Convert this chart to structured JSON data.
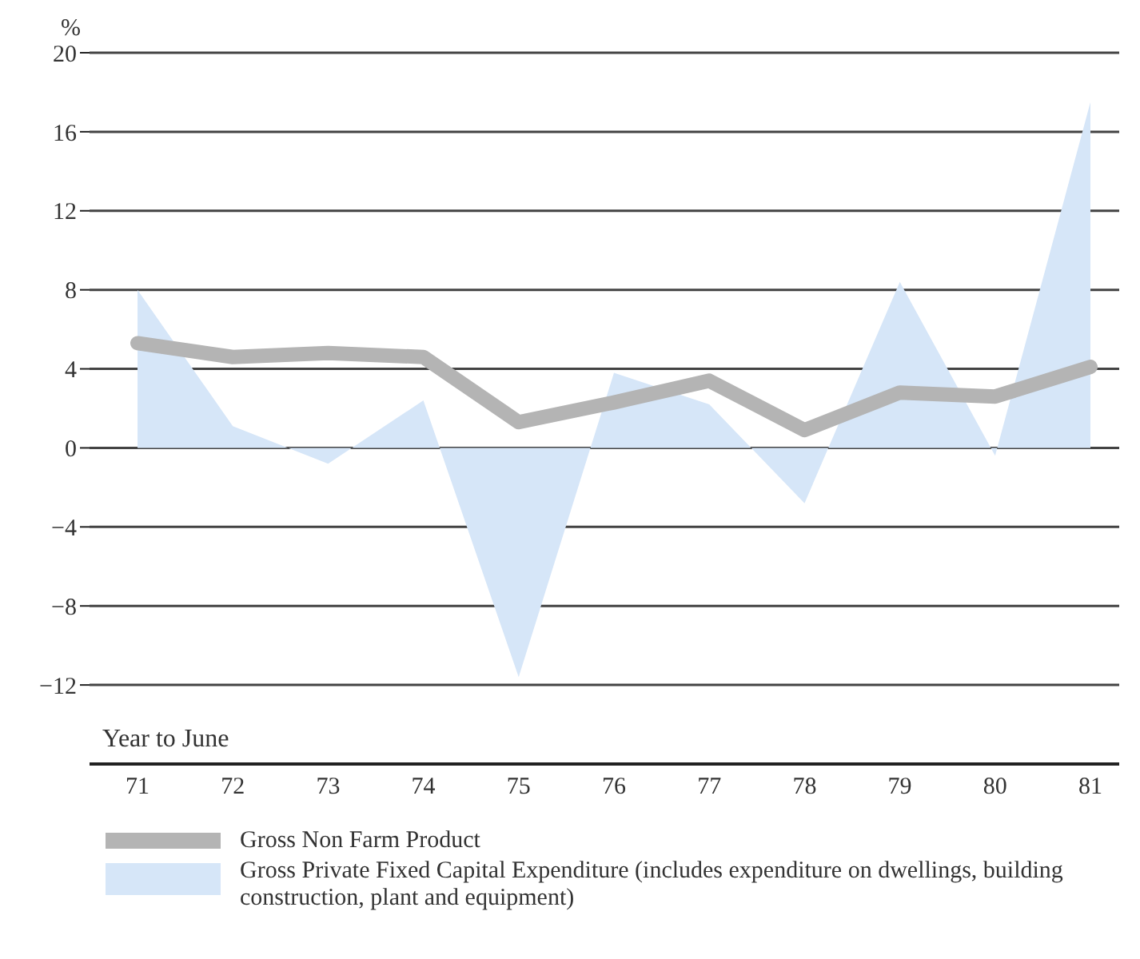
{
  "chart_data": {
    "type": "line",
    "ylabel": "%",
    "categories": [
      "71",
      "72",
      "73",
      "74",
      "75",
      "76",
      "77",
      "78",
      "79",
      "80",
      "81"
    ],
    "series": [
      {
        "name": "Gross Private Fixed Capital Expenditure (includes expenditure on dwellings, building construction, plant and equipment)",
        "type": "area",
        "color": "#d6e6f8",
        "values": [
          8,
          1.1,
          -0.8,
          2.4,
          -11.6,
          3.8,
          2.2,
          -2.8,
          8.4,
          -0.4,
          17.5
        ]
      },
      {
        "name": "Gross Non Farm Product",
        "color": "#b4b4b4",
        "values": [
          5.3,
          4.6,
          4.8,
          4.6,
          1.3,
          2.3,
          3.4,
          0.9,
          2.8,
          2.6,
          4.1
        ]
      }
    ],
    "ylim": [
      -16,
      20
    ],
    "yticks": [
      20,
      16,
      12,
      8,
      4,
      0,
      -4,
      -8,
      -12
    ],
    "grid": "y",
    "legend": "bottom",
    "marker": "none",
    "annotations": [
      "Year to June"
    ]
  }
}
